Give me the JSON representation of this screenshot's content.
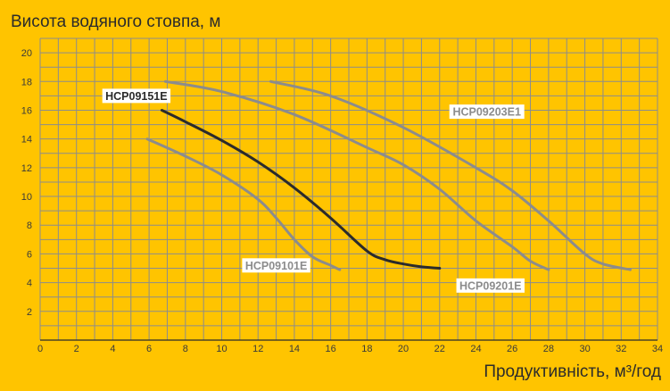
{
  "chart_data": {
    "type": "line",
    "title": "",
    "ylabel": "Висота водяного стовпа, м",
    "xlabel": "Продуктивність, м³/год",
    "xlim": [
      0,
      34
    ],
    "ylim": [
      0,
      21
    ],
    "x_ticks": [
      "0",
      "2",
      "4",
      "6",
      "8",
      "10",
      "12",
      "14",
      "16",
      "18",
      "20",
      "22",
      "24",
      "26",
      "28",
      "30",
      "32",
      "34"
    ],
    "y_ticks": [
      "2",
      "4",
      "6",
      "8",
      "10",
      "12",
      "14",
      "16",
      "18",
      "20"
    ],
    "grid": true,
    "series": [
      {
        "name": "HCP09151E",
        "color": "#2b2b2b",
        "highlight": true,
        "x": [
          6.7,
          8,
          10,
          12,
          14,
          16,
          18,
          19,
          20,
          21,
          22
        ],
        "y": [
          16.0,
          15.2,
          13.9,
          12.4,
          10.6,
          8.5,
          6.2,
          5.6,
          5.3,
          5.1,
          5.0
        ]
      },
      {
        "name": "HCP09101E",
        "color": "#8C8C8C",
        "highlight": false,
        "x": [
          5.9,
          8,
          10,
          12,
          13,
          14,
          15,
          16,
          16.5
        ],
        "y": [
          14.0,
          12.8,
          11.5,
          9.8,
          8.5,
          7.0,
          5.8,
          5.2,
          4.9
        ]
      },
      {
        "name": "HCP09201E",
        "color": "#8C8C8C",
        "highlight": false,
        "x": [
          6.9,
          10,
          14,
          18,
          20,
          22,
          24,
          26,
          27,
          28
        ],
        "y": [
          18.0,
          17.3,
          15.7,
          13.4,
          12.2,
          10.5,
          8.3,
          6.5,
          5.5,
          4.9
        ]
      },
      {
        "name": "HCP09203E1",
        "color": "#8C8C8C",
        "highlight": false,
        "x": [
          12.7,
          16,
          20,
          24,
          26,
          28,
          30,
          31,
          32.5
        ],
        "y": [
          18.0,
          17.0,
          14.8,
          12.0,
          10.4,
          8.3,
          6.0,
          5.3,
          4.9
        ]
      }
    ],
    "labels": [
      {
        "series": "HCP09151E",
        "text": "HCP09151E",
        "at_x": 5.3,
        "at_y": 17.0,
        "anchor": "middle"
      },
      {
        "series": "HCP09101E",
        "text": "HCP09101E",
        "at_x": 13.0,
        "at_y": 5.2,
        "anchor": "middle"
      },
      {
        "series": "HCP09201E",
        "text": "HCP09201E",
        "at_x": 24.8,
        "at_y": 3.8,
        "anchor": "middle"
      },
      {
        "series": "HCP09203E1",
        "text": "HCP09203E1",
        "at_x": 24.6,
        "at_y": 15.9,
        "anchor": "middle"
      }
    ],
    "colors": {
      "background": "#FFC400",
      "grid": "#8C8C8C",
      "axis": "#2b2b2b",
      "label_bg": "#FFFFFF"
    }
  }
}
